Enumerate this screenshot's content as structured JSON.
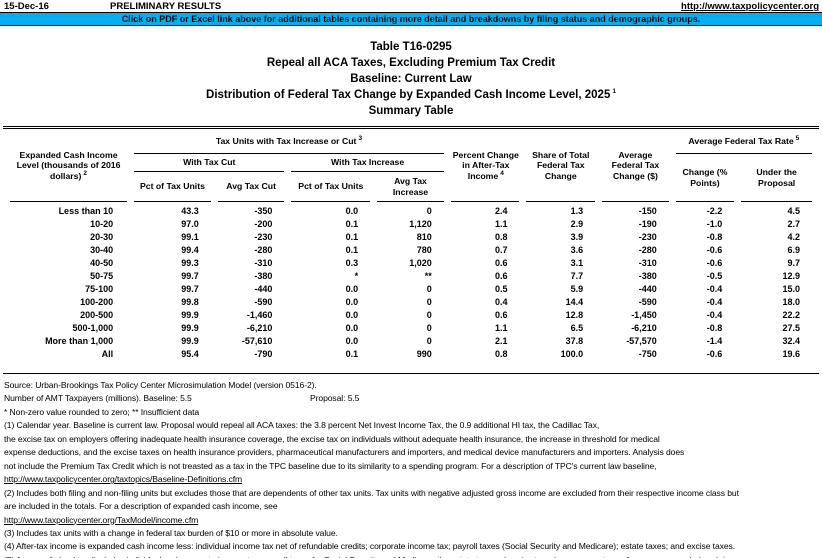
{
  "meta_bar": {
    "date": "15-Dec-16",
    "status": "PRELIMINARY RESULTS",
    "url": "http://www.taxpolicycenter.org"
  },
  "banner": {
    "text": "Click on PDF or Excel link above for additional tables containing more detail and breakdowns by filing status and demographic groups.",
    "background_color": "#00B0F0"
  },
  "title": {
    "line1": "Table T16-0295",
    "line2": "Repeal all ACA Taxes, Excluding Premium Tax Credit",
    "line3": "Baseline: Current Law",
    "line4": "Distribution of Federal Tax Change by Expanded Cash Income Level, 2025",
    "line4_sup": "1",
    "line5": "Summary Table"
  },
  "table": {
    "header": {
      "income_level": {
        "text": "Expanded Cash Income Level (thousands of 2016 dollars)",
        "sup": "2"
      },
      "group_tax_units": {
        "text": "Tax Units with Tax Increase or Cut",
        "sup": "3"
      },
      "group_with_cut": "With Tax Cut",
      "group_with_increase": "With Tax Increase",
      "pct_units_cut": "Pct of Tax Units",
      "avg_tax_cut": "Avg Tax Cut",
      "pct_units_increase": "Pct of Tax Units",
      "avg_tax_increase": "Avg Tax Increase",
      "pct_change_after_tax": {
        "text": "Percent Change in After-Tax Income",
        "sup": "4"
      },
      "share_of_total": "Share of Total Federal Tax Change",
      "avg_federal_change": "Average Federal Tax Change ($)",
      "group_avg_rate": {
        "text": "Average Federal Tax Rate",
        "sup": "5"
      },
      "rate_change": "Change (% Points)",
      "rate_under_proposal": "Under the Proposal"
    },
    "rows": [
      [
        "Less than 10",
        "43.3",
        "-350",
        "0.0",
        "0",
        "2.4",
        "1.3",
        "-150",
        "-2.2",
        "4.5"
      ],
      [
        "10-20",
        "97.0",
        "-200",
        "0.1",
        "1,120",
        "1.1",
        "2.9",
        "-190",
        "-1.0",
        "2.7"
      ],
      [
        "20-30",
        "99.1",
        "-230",
        "0.1",
        "810",
        "0.8",
        "3.9",
        "-230",
        "-0.8",
        "4.2"
      ],
      [
        "30-40",
        "99.4",
        "-280",
        "0.1",
        "780",
        "0.7",
        "3.6",
        "-280",
        "-0.6",
        "6.9"
      ],
      [
        "40-50",
        "99.3",
        "-310",
        "0.3",
        "1,020",
        "0.6",
        "3.1",
        "-310",
        "-0.6",
        "9.7"
      ],
      [
        "50-75",
        "99.7",
        "-380",
        "*",
        "**",
        "0.6",
        "7.7",
        "-380",
        "-0.5",
        "12.9"
      ],
      [
        "75-100",
        "99.7",
        "-440",
        "0.0",
        "0",
        "0.5",
        "5.9",
        "-440",
        "-0.4",
        "15.0"
      ],
      [
        "100-200",
        "99.8",
        "-590",
        "0.0",
        "0",
        "0.4",
        "14.4",
        "-590",
        "-0.4",
        "18.0"
      ],
      [
        "200-500",
        "99.9",
        "-1,460",
        "0.0",
        "0",
        "0.6",
        "12.8",
        "-1,450",
        "-0.4",
        "22.2"
      ],
      [
        "500-1,000",
        "99.9",
        "-6,210",
        "0.0",
        "0",
        "1.1",
        "6.5",
        "-6,210",
        "-0.8",
        "27.5"
      ],
      [
        "More than 1,000",
        "99.9",
        "-57,610",
        "0.0",
        "0",
        "2.1",
        "37.8",
        "-57,570",
        "-1.4",
        "32.4"
      ],
      [
        "All",
        "95.4",
        "-790",
        "0.1",
        "990",
        "0.8",
        "100.0",
        "-750",
        "-0.6",
        "19.6"
      ]
    ]
  },
  "notes": {
    "source": "Source: Urban-Brookings Tax Policy Center Microsimulation Model (version 0516-2).",
    "amt_left": "Number of AMT Taxpayers (millions).  Baseline: 5.5",
    "amt_right": "Proposal: 5.5",
    "symbols": "* Non-zero value rounded to zero; ** Insufficient data",
    "lines": [
      {
        "text": "(1) Calendar year. Baseline is current law. Proposal would repeal all ACA taxes: the 3.8 percent Net Invest Income Tax, the 0.9 additional HI tax, the Cadillac Tax,",
        "link": false
      },
      {
        "text": "the excise tax on employers offering inadequate health insurance coverage, the excise tax on individuals without adequate health insurance, the increase in threshold for medical",
        "link": false
      },
      {
        "text": "expense deductions, and the excise taxes on health insurance providers, pharmaceutical manufacturers and importers, and medical device manufacturers and importers. Analysis does",
        "link": false
      },
      {
        "text": "not include the Premium Tax Credit which is not treasted as a tax in the TPC baseline due to its similarity to a spending program. For a description of TPC's current law baseline,",
        "link": false
      },
      {
        "text": "http://www.taxpolicycenter.org/taxtopics/Baseline-Definitions.cfm",
        "link": true
      },
      {
        "text": "(2) Includes both filing and non-filing units but excludes those that are dependents of other tax units. Tax units with negative adjusted gross income are excluded from their respective income class but",
        "link": false
      },
      {
        "text": "are included in the totals. For a description of expanded cash income, see",
        "link": false
      },
      {
        "text": "http://www.taxpolicycenter.org/TaxModel/income.cfm",
        "link": true
      },
      {
        "text": "(3) Includes tax units with a change in federal tax burden of $10 or more in absolute value.",
        "link": false
      },
      {
        "text": "(4) After-tax income is expanded cash income less: individual income tax net of refundable credits; corporate income tax; payroll taxes (Social Security and Medicare); estate taxes; and excise taxes.",
        "link": false
      },
      {
        "text": "(5) Average federal tax (includes individual and corporate income tax, payroll taxes for Social Security and Medicare, the estate tax, and excise taxes) as a percentage of average expanded cash income.",
        "link": false
      }
    ]
  }
}
